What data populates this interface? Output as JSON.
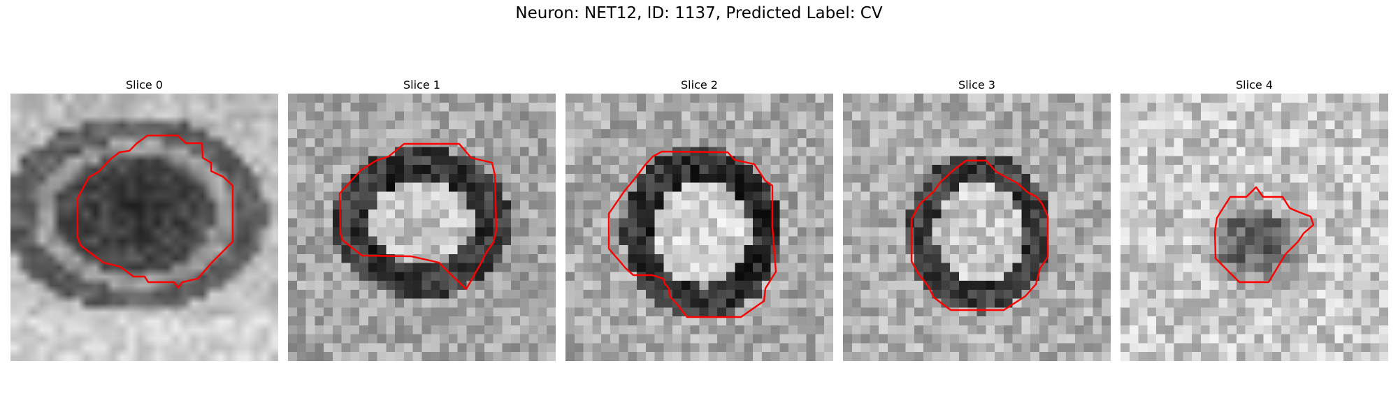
{
  "title": "Neuron: NET12, ID: 1137, Predicted Label: CV",
  "contour_color": "#ff0000",
  "slices": [
    {
      "title": "Slice 0"
    },
    {
      "title": "Slice 1"
    },
    {
      "title": "Slice 2"
    },
    {
      "title": "Slice 3"
    },
    {
      "title": "Slice 4"
    }
  ]
}
